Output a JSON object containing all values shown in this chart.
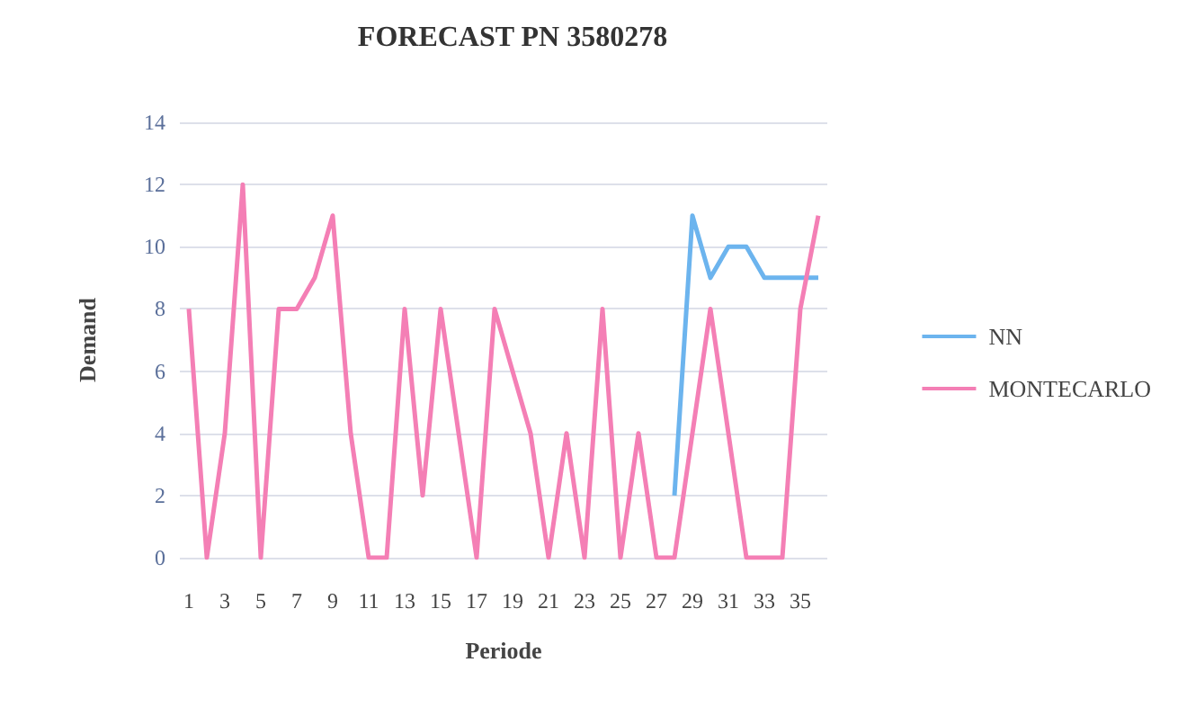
{
  "chart_data": {
    "type": "line",
    "title": "FORECAST PN 3580278",
    "xlabel": "Periode",
    "ylabel": "Demand",
    "x": [
      1,
      2,
      3,
      4,
      5,
      6,
      7,
      8,
      9,
      10,
      11,
      12,
      13,
      14,
      15,
      16,
      17,
      18,
      19,
      20,
      21,
      22,
      23,
      24,
      25,
      26,
      27,
      28,
      29,
      30,
      31,
      32,
      33,
      34,
      35,
      36
    ],
    "xlim": [
      0.5,
      36.5
    ],
    "xticks": [
      1,
      3,
      5,
      7,
      9,
      11,
      13,
      15,
      17,
      19,
      21,
      23,
      25,
      27,
      29,
      31,
      33,
      35
    ],
    "series": [
      {
        "name": "NN",
        "color": "#6cb4ee",
        "values": [
          null,
          null,
          null,
          null,
          null,
          null,
          null,
          null,
          null,
          null,
          null,
          null,
          null,
          null,
          null,
          null,
          null,
          null,
          null,
          null,
          null,
          null,
          null,
          null,
          null,
          null,
          null,
          2,
          11,
          9,
          10,
          10,
          9,
          9,
          9,
          9
        ]
      },
      {
        "name": "MONTECARLO",
        "color": "#f47fb5",
        "values": [
          8,
          0,
          4,
          12,
          0,
          8,
          8,
          9,
          11,
          4,
          0,
          0,
          8,
          2,
          8,
          4,
          0,
          8,
          6,
          4,
          0,
          4,
          0,
          8,
          0,
          4,
          0,
          0,
          4,
          8,
          4,
          0,
          0,
          0,
          8,
          11
        ]
      }
    ],
    "ylim": [
      0,
      14
    ],
    "yticks": [
      0,
      2,
      4,
      6,
      8,
      10,
      12,
      14
    ],
    "grid": "y",
    "legend": "right",
    "marker": "none",
    "line_style": "solid"
  }
}
